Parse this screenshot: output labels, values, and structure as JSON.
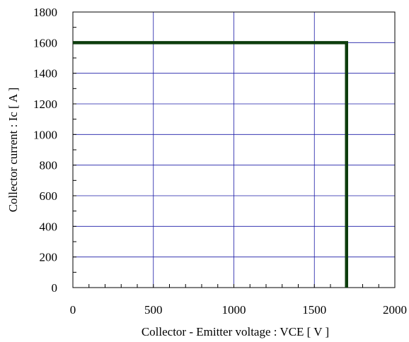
{
  "chart_data": {
    "type": "line",
    "title": "",
    "xlabel": "Collector - Emitter voltage  :  VCE  [ V ]",
    "ylabel": "Collector current  : Ic  [ A ]",
    "xlim": [
      0,
      2000
    ],
    "ylim": [
      0,
      1800
    ],
    "x_ticks": [
      0,
      500,
      1000,
      1500,
      2000
    ],
    "y_ticks": [
      0,
      200,
      400,
      600,
      800,
      1000,
      1200,
      1400,
      1600,
      1800
    ],
    "x_minor_step": 100,
    "y_minor_step": 100,
    "grid": true,
    "colors": {
      "grid": "#1a1aa6",
      "series": "#0d3d0d",
      "axis": "#000000"
    },
    "series": [
      {
        "x": [
          0,
          1700,
          1700
        ],
        "y": [
          1600,
          1600,
          0
        ]
      }
    ]
  }
}
